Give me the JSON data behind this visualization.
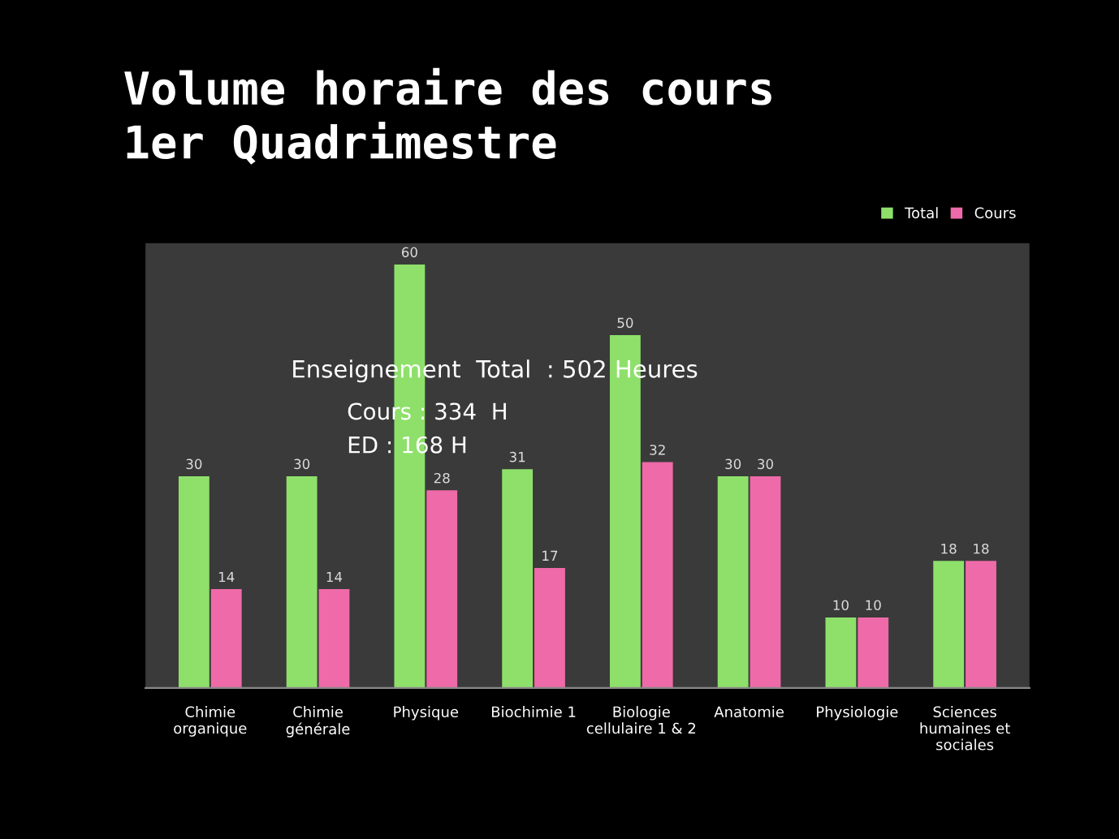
{
  "chart_data": {
    "type": "bar",
    "title": "Volume horaire des cours\n1er Quadrimestre",
    "categories": [
      "Chimie\norganique",
      "Chimie\ngénérale",
      "Physique",
      "Biochimie 1",
      "Biologie\ncellulaire 1 & 2",
      "Anatomie",
      "Physiologie",
      "Sciences\nhumaines et\nsociales"
    ],
    "series": [
      {
        "name": "Total",
        "color": "#8ee06a",
        "values": [
          30,
          30,
          60,
          31,
          50,
          30,
          10,
          18
        ]
      },
      {
        "name": "Cours",
        "color": "#ef6aa8",
        "values": [
          14,
          14,
          28,
          17,
          32,
          30,
          10,
          18
        ]
      }
    ],
    "data_labels": true,
    "legend": "top right",
    "grid": false,
    "annotations": [
      "Enseignement  Total  : 502 Heures",
      "Cours : 334  H",
      "ED : 168 H"
    ]
  }
}
